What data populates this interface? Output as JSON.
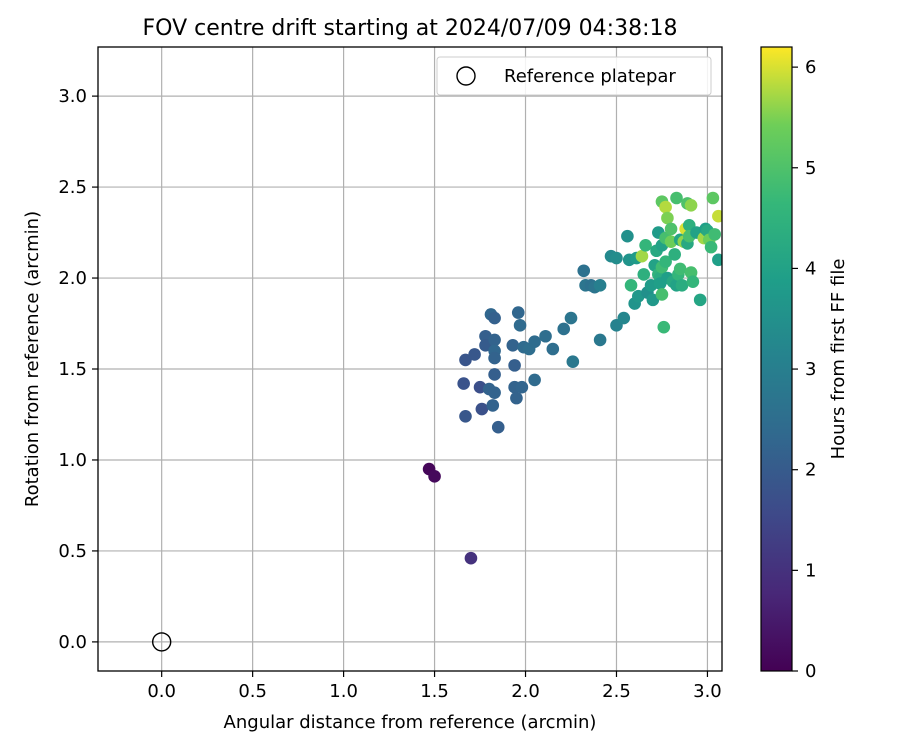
{
  "chart_data": {
    "type": "scatter",
    "title": "FOV centre drift starting at 2024/07/09 04:38:18",
    "xlabel": "Angular distance from reference (arcmin)",
    "ylabel": "Rotation from reference (arcmin)",
    "xlim": [
      -0.35,
      3.08
    ],
    "ylim": [
      -0.16,
      3.27
    ],
    "xticks": [
      "0.0",
      "0.5",
      "1.0",
      "1.5",
      "2.0",
      "2.5",
      "3.0"
    ],
    "yticks": [
      "0.0",
      "0.5",
      "1.0",
      "1.5",
      "2.0",
      "2.5",
      "3.0"
    ],
    "grid": true,
    "legend": {
      "label": "Reference platepar",
      "placement": "top-right"
    },
    "reference_point": {
      "x": 0.0,
      "y": 0.0,
      "marker": "open-circle"
    },
    "colorbar": {
      "label": "Hours from first FF file",
      "colormap": "viridis",
      "range": [
        0,
        6.2
      ],
      "ticks": [
        "0",
        "1",
        "2",
        "3",
        "4",
        "5",
        "6"
      ]
    },
    "points": [
      {
        "x": 1.47,
        "y": 0.95,
        "h": 0.1
      },
      {
        "x": 1.5,
        "y": 0.91,
        "h": 0.15
      },
      {
        "x": 1.7,
        "y": 0.46,
        "h": 1.0
      },
      {
        "x": 1.66,
        "y": 1.42,
        "h": 1.8
      },
      {
        "x": 1.67,
        "y": 1.55,
        "h": 1.85
      },
      {
        "x": 1.67,
        "y": 1.24,
        "h": 1.9
      },
      {
        "x": 1.72,
        "y": 1.58,
        "h": 1.9
      },
      {
        "x": 1.75,
        "y": 1.4,
        "h": 1.7
      },
      {
        "x": 1.76,
        "y": 1.28,
        "h": 1.75
      },
      {
        "x": 1.78,
        "y": 1.68,
        "h": 2.1
      },
      {
        "x": 1.78,
        "y": 1.63,
        "h": 2.0
      },
      {
        "x": 1.8,
        "y": 1.39,
        "h": 2.2
      },
      {
        "x": 1.81,
        "y": 1.8,
        "h": 2.3
      },
      {
        "x": 1.82,
        "y": 1.3,
        "h": 2.2
      },
      {
        "x": 1.83,
        "y": 1.78,
        "h": 2.15
      },
      {
        "x": 1.83,
        "y": 1.66,
        "h": 2.2
      },
      {
        "x": 1.83,
        "y": 1.6,
        "h": 2.3
      },
      {
        "x": 1.83,
        "y": 1.56,
        "h": 2.2
      },
      {
        "x": 1.83,
        "y": 1.47,
        "h": 2.1
      },
      {
        "x": 1.83,
        "y": 1.37,
        "h": 2.2
      },
      {
        "x": 1.85,
        "y": 1.18,
        "h": 2.1
      },
      {
        "x": 1.93,
        "y": 1.63,
        "h": 2.2
      },
      {
        "x": 1.94,
        "y": 1.52,
        "h": 2.1
      },
      {
        "x": 1.94,
        "y": 1.4,
        "h": 2.2
      },
      {
        "x": 1.95,
        "y": 1.34,
        "h": 2.2
      },
      {
        "x": 1.96,
        "y": 1.81,
        "h": 2.3
      },
      {
        "x": 1.97,
        "y": 1.74,
        "h": 2.4
      },
      {
        "x": 1.98,
        "y": 1.4,
        "h": 2.25
      },
      {
        "x": 1.99,
        "y": 1.62,
        "h": 2.4
      },
      {
        "x": 2.02,
        "y": 1.61,
        "h": 2.5
      },
      {
        "x": 2.05,
        "y": 1.65,
        "h": 2.45
      },
      {
        "x": 2.05,
        "y": 1.44,
        "h": 2.4
      },
      {
        "x": 2.11,
        "y": 1.68,
        "h": 2.5
      },
      {
        "x": 2.15,
        "y": 1.61,
        "h": 2.5
      },
      {
        "x": 2.21,
        "y": 1.72,
        "h": 2.6
      },
      {
        "x": 2.25,
        "y": 1.78,
        "h": 2.7
      },
      {
        "x": 2.26,
        "y": 1.54,
        "h": 2.8
      },
      {
        "x": 2.32,
        "y": 2.04,
        "h": 2.6
      },
      {
        "x": 2.33,
        "y": 1.96,
        "h": 2.7
      },
      {
        "x": 2.36,
        "y": 1.96,
        "h": 2.6
      },
      {
        "x": 2.38,
        "y": 1.95,
        "h": 2.7
      },
      {
        "x": 2.41,
        "y": 1.96,
        "h": 3.0
      },
      {
        "x": 2.41,
        "y": 1.66,
        "h": 2.8
      },
      {
        "x": 2.47,
        "y": 2.12,
        "h": 3.3
      },
      {
        "x": 2.5,
        "y": 2.11,
        "h": 3.4
      },
      {
        "x": 2.5,
        "y": 1.74,
        "h": 3.1
      },
      {
        "x": 2.54,
        "y": 1.78,
        "h": 3.2
      },
      {
        "x": 2.56,
        "y": 2.23,
        "h": 3.5
      },
      {
        "x": 2.57,
        "y": 2.1,
        "h": 3.6
      },
      {
        "x": 2.58,
        "y": 1.96,
        "h": 4.6
      },
      {
        "x": 2.6,
        "y": 1.86,
        "h": 3.6
      },
      {
        "x": 2.61,
        "y": 2.11,
        "h": 3.8
      },
      {
        "x": 2.62,
        "y": 1.9,
        "h": 3.7
      },
      {
        "x": 2.64,
        "y": 2.12,
        "h": 5.7
      },
      {
        "x": 2.65,
        "y": 2.02,
        "h": 4.4
      },
      {
        "x": 2.66,
        "y": 2.18,
        "h": 4.6
      },
      {
        "x": 2.67,
        "y": 1.92,
        "h": 3.5
      },
      {
        "x": 2.69,
        "y": 1.96,
        "h": 3.8
      },
      {
        "x": 2.7,
        "y": 1.88,
        "h": 3.7
      },
      {
        "x": 2.71,
        "y": 2.07,
        "h": 4.0
      },
      {
        "x": 2.72,
        "y": 2.15,
        "h": 4.2
      },
      {
        "x": 2.73,
        "y": 2.25,
        "h": 3.8
      },
      {
        "x": 2.73,
        "y": 2.02,
        "h": 4.5
      },
      {
        "x": 2.74,
        "y": 2.0,
        "h": 4.3
      },
      {
        "x": 2.74,
        "y": 1.97,
        "h": 3.9
      },
      {
        "x": 2.75,
        "y": 2.42,
        "h": 5.2
      },
      {
        "x": 2.75,
        "y": 2.18,
        "h": 4.0
      },
      {
        "x": 2.75,
        "y": 2.06,
        "h": 4.8
      },
      {
        "x": 2.75,
        "y": 1.91,
        "h": 4.9
      },
      {
        "x": 2.76,
        "y": 1.73,
        "h": 4.7
      },
      {
        "x": 2.77,
        "y": 2.39,
        "h": 5.8
      },
      {
        "x": 2.77,
        "y": 2.22,
        "h": 4.9
      },
      {
        "x": 2.77,
        "y": 2.09,
        "h": 4.6
      },
      {
        "x": 2.78,
        "y": 2.33,
        "h": 5.5
      },
      {
        "x": 2.78,
        "y": 2.0,
        "h": 3.9
      },
      {
        "x": 2.8,
        "y": 2.27,
        "h": 5.0
      },
      {
        "x": 2.8,
        "y": 2.2,
        "h": 5.4
      },
      {
        "x": 2.81,
        "y": 1.98,
        "h": 4.2
      },
      {
        "x": 2.82,
        "y": 2.13,
        "h": 4.4
      },
      {
        "x": 2.83,
        "y": 2.44,
        "h": 4.9
      },
      {
        "x": 2.83,
        "y": 1.96,
        "h": 4.0
      },
      {
        "x": 2.84,
        "y": 2.02,
        "h": 4.6
      },
      {
        "x": 2.85,
        "y": 2.21,
        "h": 4.1
      },
      {
        "x": 2.85,
        "y": 2.05,
        "h": 4.8
      },
      {
        "x": 2.86,
        "y": 1.96,
        "h": 4.3
      },
      {
        "x": 2.87,
        "y": 2.2,
        "h": 5.6
      },
      {
        "x": 2.88,
        "y": 2.27,
        "h": 6.0
      },
      {
        "x": 2.89,
        "y": 2.41,
        "h": 5.0
      },
      {
        "x": 2.89,
        "y": 2.19,
        "h": 4.2
      },
      {
        "x": 2.9,
        "y": 2.29,
        "h": 4.4
      },
      {
        "x": 2.9,
        "y": 2.23,
        "h": 4.9
      },
      {
        "x": 2.91,
        "y": 2.4,
        "h": 5.6
      },
      {
        "x": 2.91,
        "y": 2.03,
        "h": 4.9
      },
      {
        "x": 2.92,
        "y": 1.98,
        "h": 4.6
      },
      {
        "x": 2.94,
        "y": 2.25,
        "h": 4.0
      },
      {
        "x": 2.96,
        "y": 1.88,
        "h": 4.1
      },
      {
        "x": 2.98,
        "y": 2.22,
        "h": 5.7
      },
      {
        "x": 2.99,
        "y": 2.27,
        "h": 3.9
      },
      {
        "x": 3.0,
        "y": 2.26,
        "h": 4.2
      },
      {
        "x": 3.01,
        "y": 2.21,
        "h": 5.4
      },
      {
        "x": 3.02,
        "y": 2.17,
        "h": 4.7
      },
      {
        "x": 3.03,
        "y": 2.44,
        "h": 5.2
      },
      {
        "x": 3.04,
        "y": 2.24,
        "h": 4.8
      },
      {
        "x": 3.06,
        "y": 2.34,
        "h": 5.9
      },
      {
        "x": 3.06,
        "y": 2.1,
        "h": 3.9
      }
    ]
  }
}
